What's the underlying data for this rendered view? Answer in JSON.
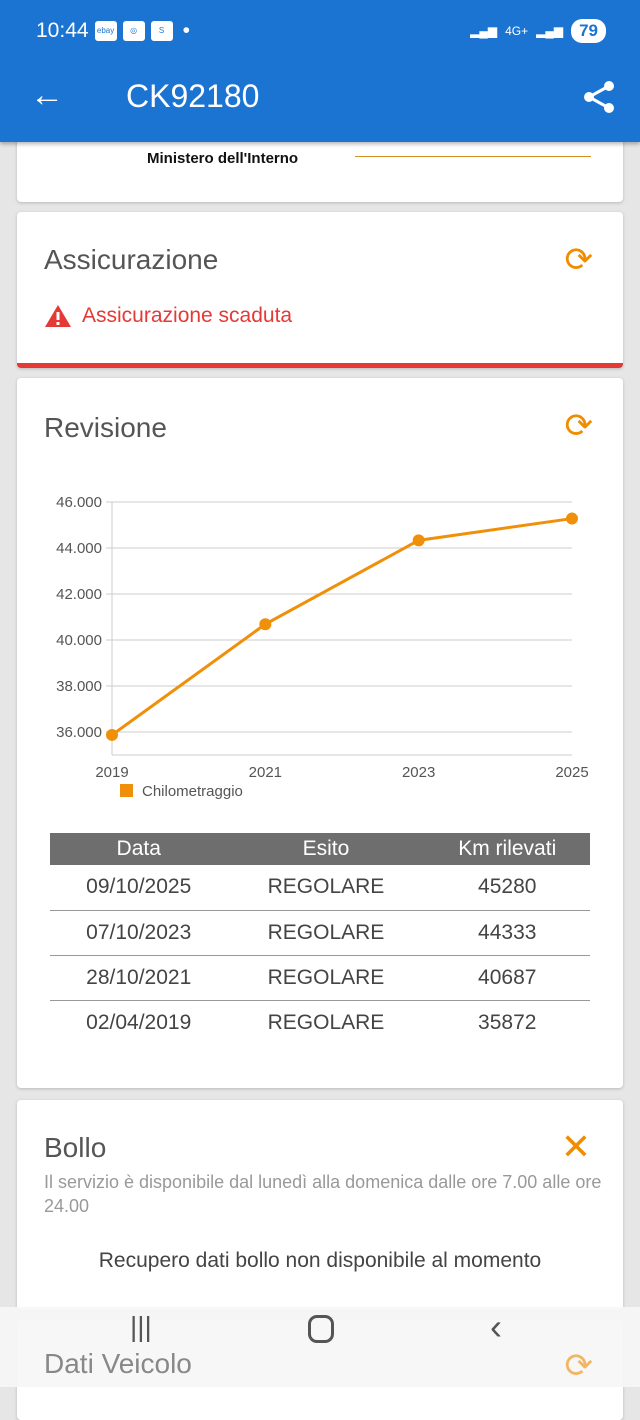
{
  "status_bar": {
    "time": "10:44",
    "battery": "79",
    "network": "4G+"
  },
  "app_bar": {
    "title": "CK92180"
  },
  "header_card": {
    "logo_text": "Ministero dell'Interno"
  },
  "assicurazione": {
    "title": "Assicurazione",
    "warning": "Assicurazione scaduta"
  },
  "revisione": {
    "title": "Revisione",
    "table": {
      "headers": [
        "Data",
        "Esito",
        "Km rilevati"
      ],
      "rows": [
        [
          "09/10/2025",
          "REGOLARE",
          "45280"
        ],
        [
          "07/10/2023",
          "REGOLARE",
          "44333"
        ],
        [
          "28/10/2021",
          "REGOLARE",
          "40687"
        ],
        [
          "02/04/2019",
          "REGOLARE",
          "35872"
        ]
      ]
    }
  },
  "chart_data": {
    "type": "line",
    "categories": [
      "2019",
      "2021",
      "2023",
      "2025"
    ],
    "series": [
      {
        "name": "Chilometraggio",
        "values": [
          35872,
          40687,
          44333,
          45280
        ],
        "color": "#f0900a"
      }
    ],
    "yticks": [
      "36.000",
      "38.000",
      "40.000",
      "42.000",
      "44.000",
      "46.000"
    ],
    "ylim": [
      35000,
      46000
    ],
    "grid": true,
    "legend": "bottom-left"
  },
  "bollo": {
    "title": "Bollo",
    "info": "Il servizio è disponibile dal lunedì alla domenica dalle ore 7.00 alle ore 24.00",
    "message": "Recupero dati bollo non disponibile al momento"
  },
  "dati_veicolo": {
    "title": "Dati Veicolo"
  },
  "colors": {
    "primary": "#1c74d2",
    "accent": "#f08c00",
    "error": "#e53935"
  }
}
